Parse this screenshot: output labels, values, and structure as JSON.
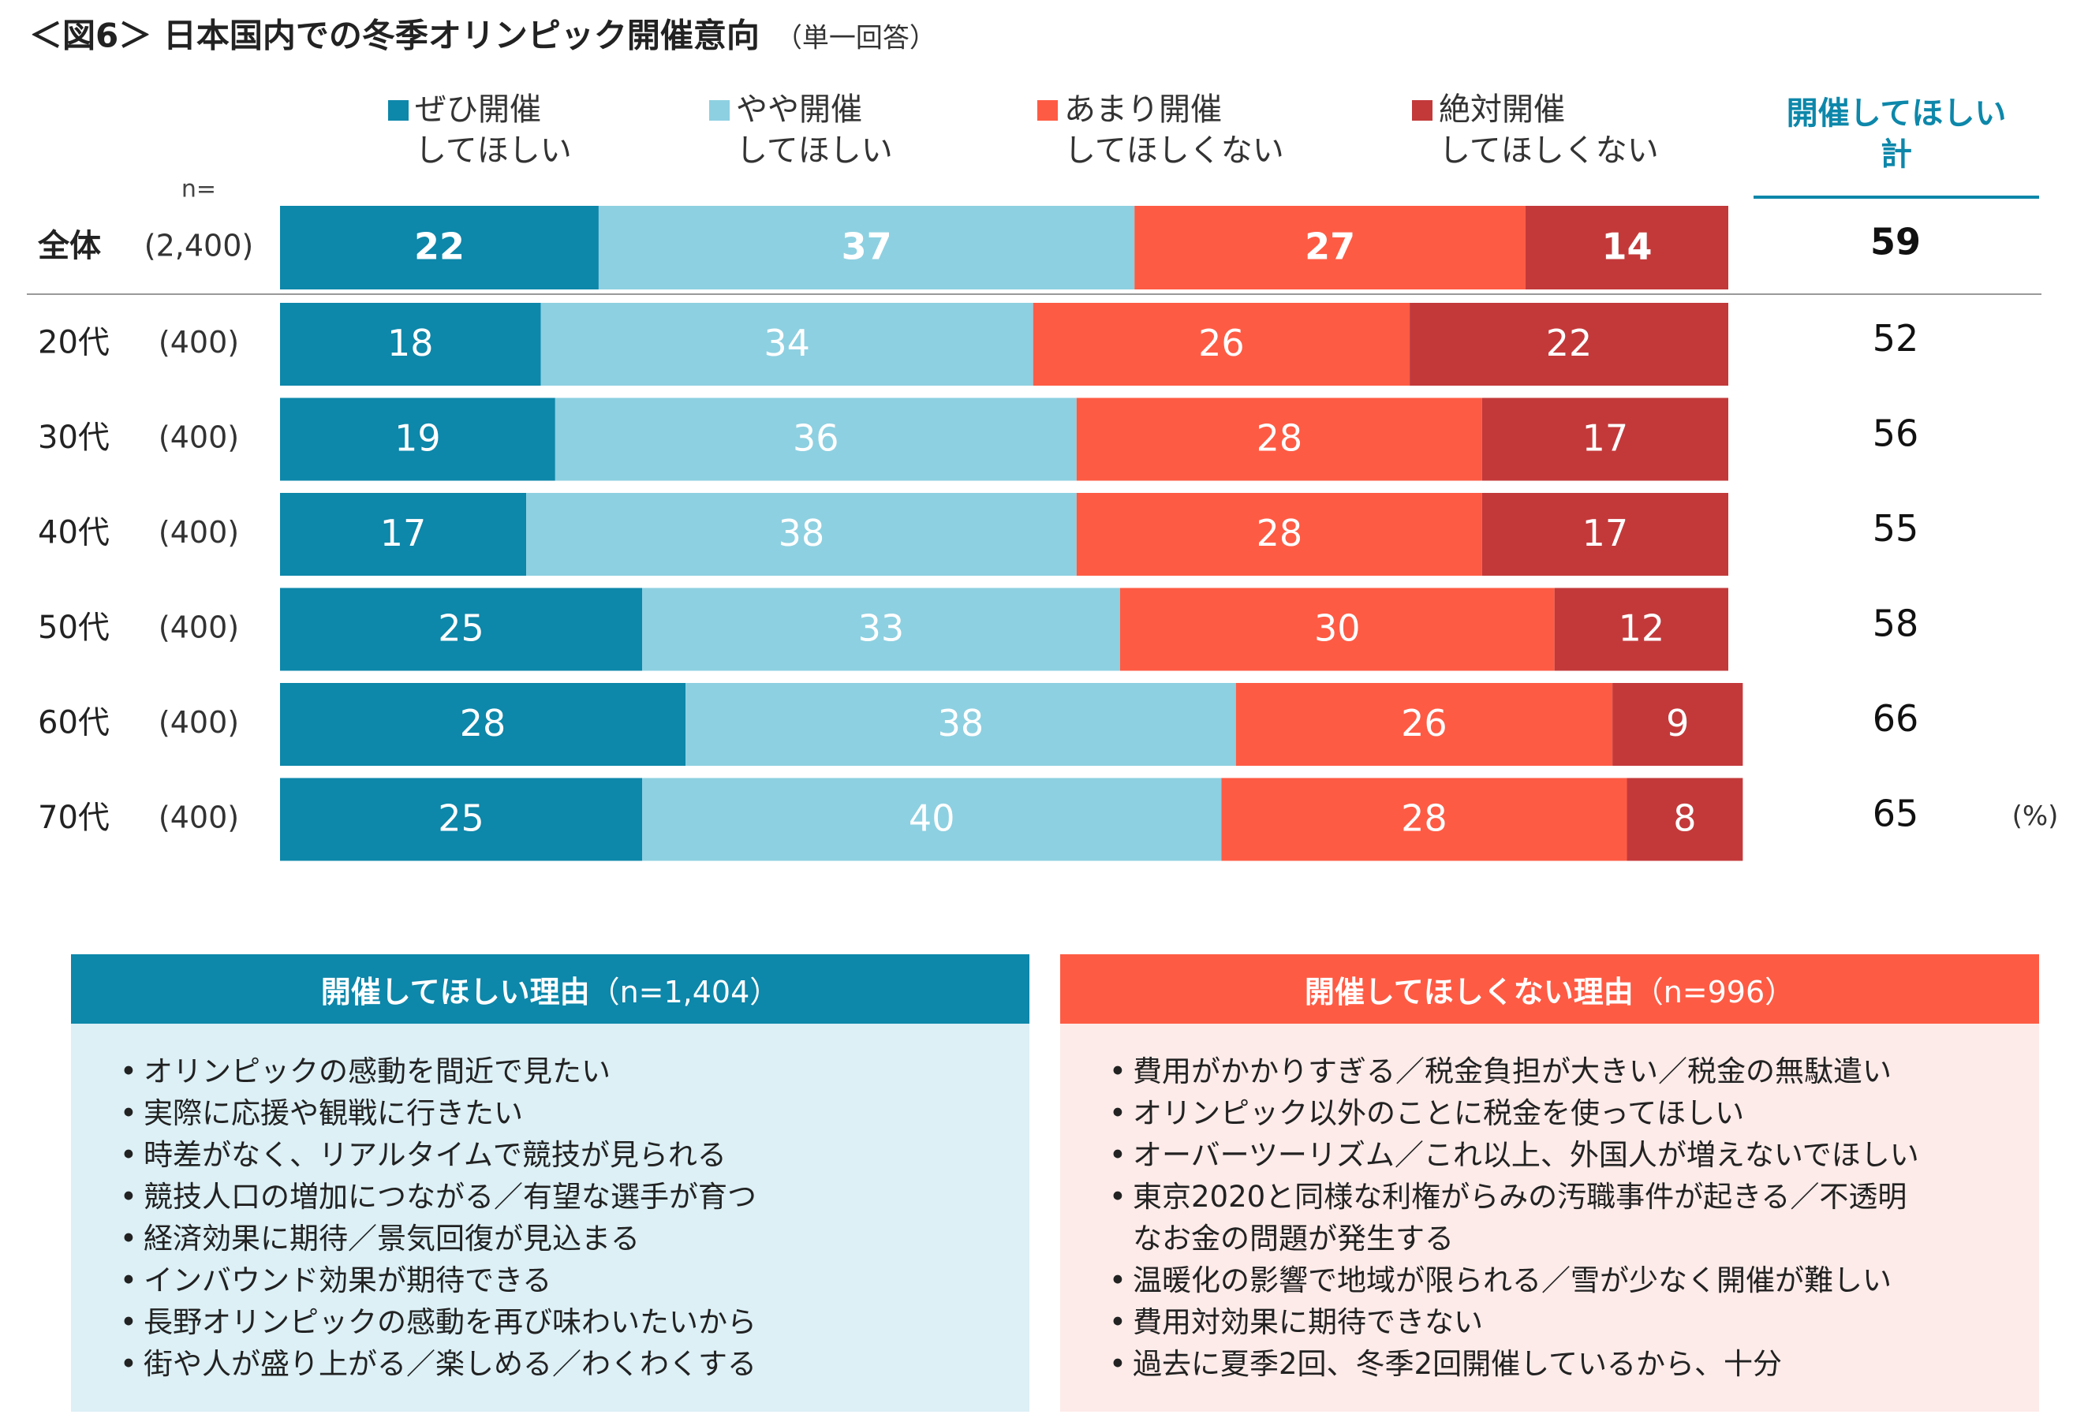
{
  "chart_data": {
    "type": "stacked_bar",
    "title": "＜図6＞ 日本国内での冬季オリンピック開催意向",
    "subtitle": "（単一回答）",
    "n_header": "n=",
    "categories": [
      "全体",
      "20代",
      "30代",
      "40代",
      "50代",
      "60代",
      "70代"
    ],
    "n_labels": [
      "(2,400)",
      "(400)",
      "(400)",
      "(400)",
      "(400)",
      "(400)",
      "(400)"
    ],
    "xlim": [
      0,
      100
    ],
    "series": [
      {
        "name": "ぜひ開催\nしてほしい",
        "color": "#0d87aa",
        "values": [
          22,
          18,
          19,
          17,
          25,
          28,
          25
        ]
      },
      {
        "name": "やや開催\nしてほしい",
        "color": "#8dd0e1",
        "values": [
          37,
          34,
          36,
          38,
          33,
          38,
          40
        ]
      },
      {
        "name": "あまり開催\nしてほしくない",
        "color": "#fe5b44",
        "values": [
          27,
          26,
          28,
          28,
          30,
          26,
          28
        ]
      },
      {
        "name": "絶対開催\nしてほしくない",
        "color": "#c3393a",
        "values": [
          14,
          22,
          17,
          17,
          12,
          9,
          8
        ]
      }
    ],
    "totals": {
      "name": "開催してほしい\n計",
      "color": "#0d87aa",
      "values": [
        59,
        52,
        56,
        55,
        58,
        66,
        65
      ]
    },
    "unit": "(%)"
  },
  "panels": [
    {
      "title": "開催してほしい理由",
      "n": "（n=1,404）",
      "color": "#0d87aa",
      "background": "#dcf0f6",
      "items": [
        "オリンピックの感動を間近で見たい",
        "実際に応援や観戦に行きたい",
        "時差がなく、リアルタイムで競技が見られる",
        "競技人口の増加につながる／有望な選手が育つ",
        "経済効果に期待／景気回復が見込まる",
        "インバウンド効果が期待できる",
        "長野オリンピックの感動を再び味わいたいから",
        "街や人が盛り上がる／楽しめる／わくわくする"
      ]
    },
    {
      "title": "開催してほしくない理由",
      "n": "（n=996）",
      "color": "#fe5b44",
      "background": "#fdebe9",
      "items": [
        "費用がかかりすぎる／税金負担が大きい／税金の無駄遣い",
        "オリンピック以外のことに税金を使ってほしい",
        "オーバーツーリズム／これ以上、外国人が増えないでほしい",
        "東京2020と同様な利権がらみの汚職事件が起きる／不透明\nなお金の問題が発生する",
        "温暖化の影響で地域が限られる／雪が少なく開催が難しい",
        "費用対効果に期待できない",
        "過去に夏季2回、冬季2回開催しているから、十分"
      ]
    }
  ]
}
